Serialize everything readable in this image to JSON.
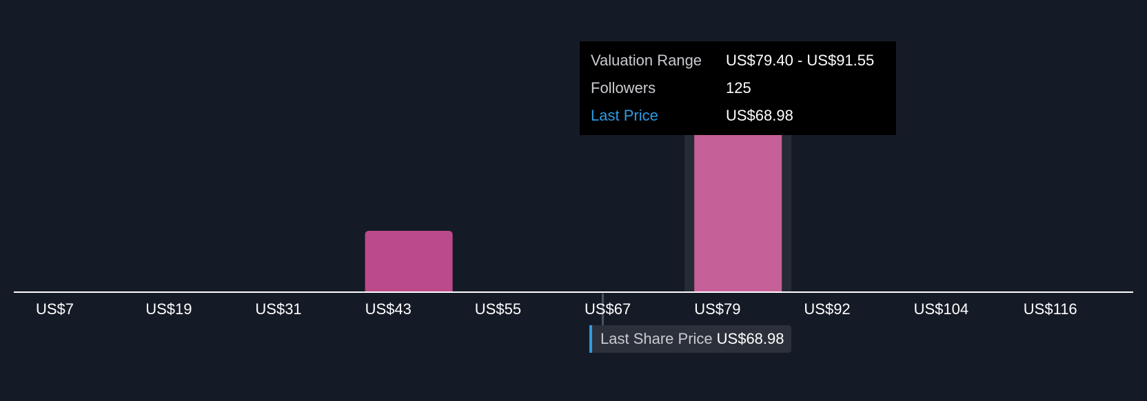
{
  "chart_data": {
    "type": "bar",
    "x_ticks": [
      "US$7",
      "US$19",
      "US$31",
      "US$43",
      "US$55",
      "US$67",
      "US$79",
      "US$92",
      "US$104",
      "US$116"
    ],
    "bins": [
      {
        "range": [
          7.0,
          19.0
        ],
        "followers": 0
      },
      {
        "range": [
          19.0,
          31.0
        ],
        "followers": 0
      },
      {
        "range": [
          31.0,
          43.0
        ],
        "followers": 0
      },
      {
        "range": [
          43.0,
          55.0
        ],
        "followers": 38
      },
      {
        "range": [
          55.0,
          67.0
        ],
        "followers": 0
      },
      {
        "range": [
          67.0,
          79.4
        ],
        "followers": 0
      },
      {
        "range": [
          79.4,
          91.55
        ],
        "followers": 125
      },
      {
        "range": [
          91.55,
          104.0
        ],
        "followers": 0
      },
      {
        "range": [
          104.0,
          116.0
        ],
        "followers": 0
      },
      {
        "range": [
          116.0,
          128.0
        ],
        "followers": 0
      }
    ],
    "highlighted_bin": 6,
    "last_price": 68.98,
    "xlim": [
      4.6,
      131.0
    ],
    "ylim": [
      0,
      140
    ],
    "colors": {
      "background": "#151b26",
      "bar": "#bb4a8a",
      "bar_highlighted": "#c56098",
      "highlight_band": "#262b35",
      "axis": "#ffffff",
      "price_marker": "#2f9be3"
    }
  },
  "tooltip": {
    "rows": [
      {
        "key": "Valuation Range",
        "value": "US$79.40 - US$91.55"
      },
      {
        "key": "Followers",
        "value": "125"
      },
      {
        "key": "Last Price",
        "value": "US$68.98"
      }
    ]
  },
  "price_badge": {
    "label": "Last Share Price",
    "value": "US$68.98"
  }
}
